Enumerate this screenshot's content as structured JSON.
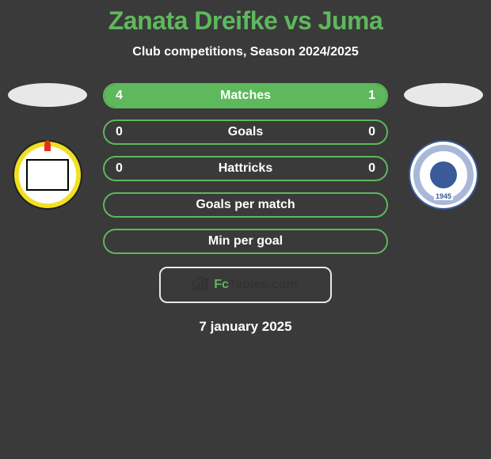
{
  "title": "Zanata Dreifke vs Juma",
  "subtitle": "Club competitions, Season 2024/2025",
  "accent_color": "#5eb85c",
  "background_color": "#3a3a3a",
  "text_color": "#ffffff",
  "brand": {
    "name_part1": "Fc",
    "name_part2": "Tables",
    "name_part3": ".com"
  },
  "date": "7 january 2025",
  "left_team": {
    "crest_year": "",
    "primary_color": "#f0e020",
    "secondary_color": "#000000"
  },
  "right_team": {
    "crest_year": "1945",
    "primary_color": "#3a5a9a",
    "secondary_color": "#a8b8d8"
  },
  "stats": [
    {
      "label": "Matches",
      "left_value": "4",
      "right_value": "1",
      "left_fill_pct": 80,
      "right_fill_pct": 20
    },
    {
      "label": "Goals",
      "left_value": "0",
      "right_value": "0",
      "left_fill_pct": 0,
      "right_fill_pct": 0
    },
    {
      "label": "Hattricks",
      "left_value": "0",
      "right_value": "0",
      "left_fill_pct": 0,
      "right_fill_pct": 0
    },
    {
      "label": "Goals per match",
      "left_value": "",
      "right_value": "",
      "left_fill_pct": 0,
      "right_fill_pct": 0
    },
    {
      "label": "Min per goal",
      "left_value": "",
      "right_value": "",
      "left_fill_pct": 0,
      "right_fill_pct": 0
    }
  ]
}
